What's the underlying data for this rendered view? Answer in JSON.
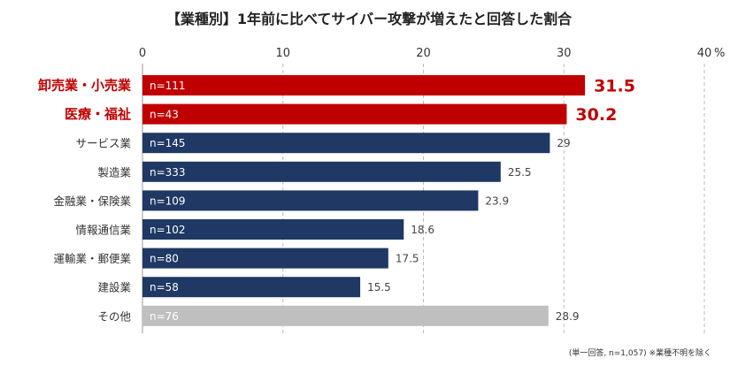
{
  "title": "【業種別】1年前に比べてサイバー攻撃が増えたと回答した割合",
  "note": "(単一回答, n=1,057) ※業種不明を除く",
  "colors": {
    "highlight": "#c00000",
    "normal": "#1f3864",
    "other": "#bfbfbf"
  },
  "chart_data": {
    "type": "bar",
    "orientation": "horizontal",
    "xlim": [
      0,
      40
    ],
    "ticks": [
      "0",
      "10",
      "20",
      "30",
      "40"
    ],
    "unit": "%",
    "grid": "dashed vertical",
    "categories": [
      "卸売業・小売業",
      "医療・福祉",
      "サービス業",
      "製造業",
      "金融業・保険業",
      "情報通信業",
      "運輸業・郵便業",
      "建設業",
      "その他"
    ],
    "n_labels": [
      "n=111",
      "n=43",
      "n=145",
      "n=333",
      "n=109",
      "n=102",
      "n=80",
      "n=58",
      "n=76"
    ],
    "value_labels": [
      "31.5",
      "30.2",
      "29",
      "25.5",
      "23.9",
      "18.6",
      "17.5",
      "15.5",
      "28.9"
    ],
    "values": [
      31.5,
      30.2,
      29,
      25.5,
      23.9,
      18.6,
      17.5,
      15.5,
      28.9
    ],
    "highlight": [
      true,
      true,
      false,
      false,
      false,
      false,
      false,
      false,
      false
    ],
    "other": [
      false,
      false,
      false,
      false,
      false,
      false,
      false,
      false,
      true
    ]
  }
}
